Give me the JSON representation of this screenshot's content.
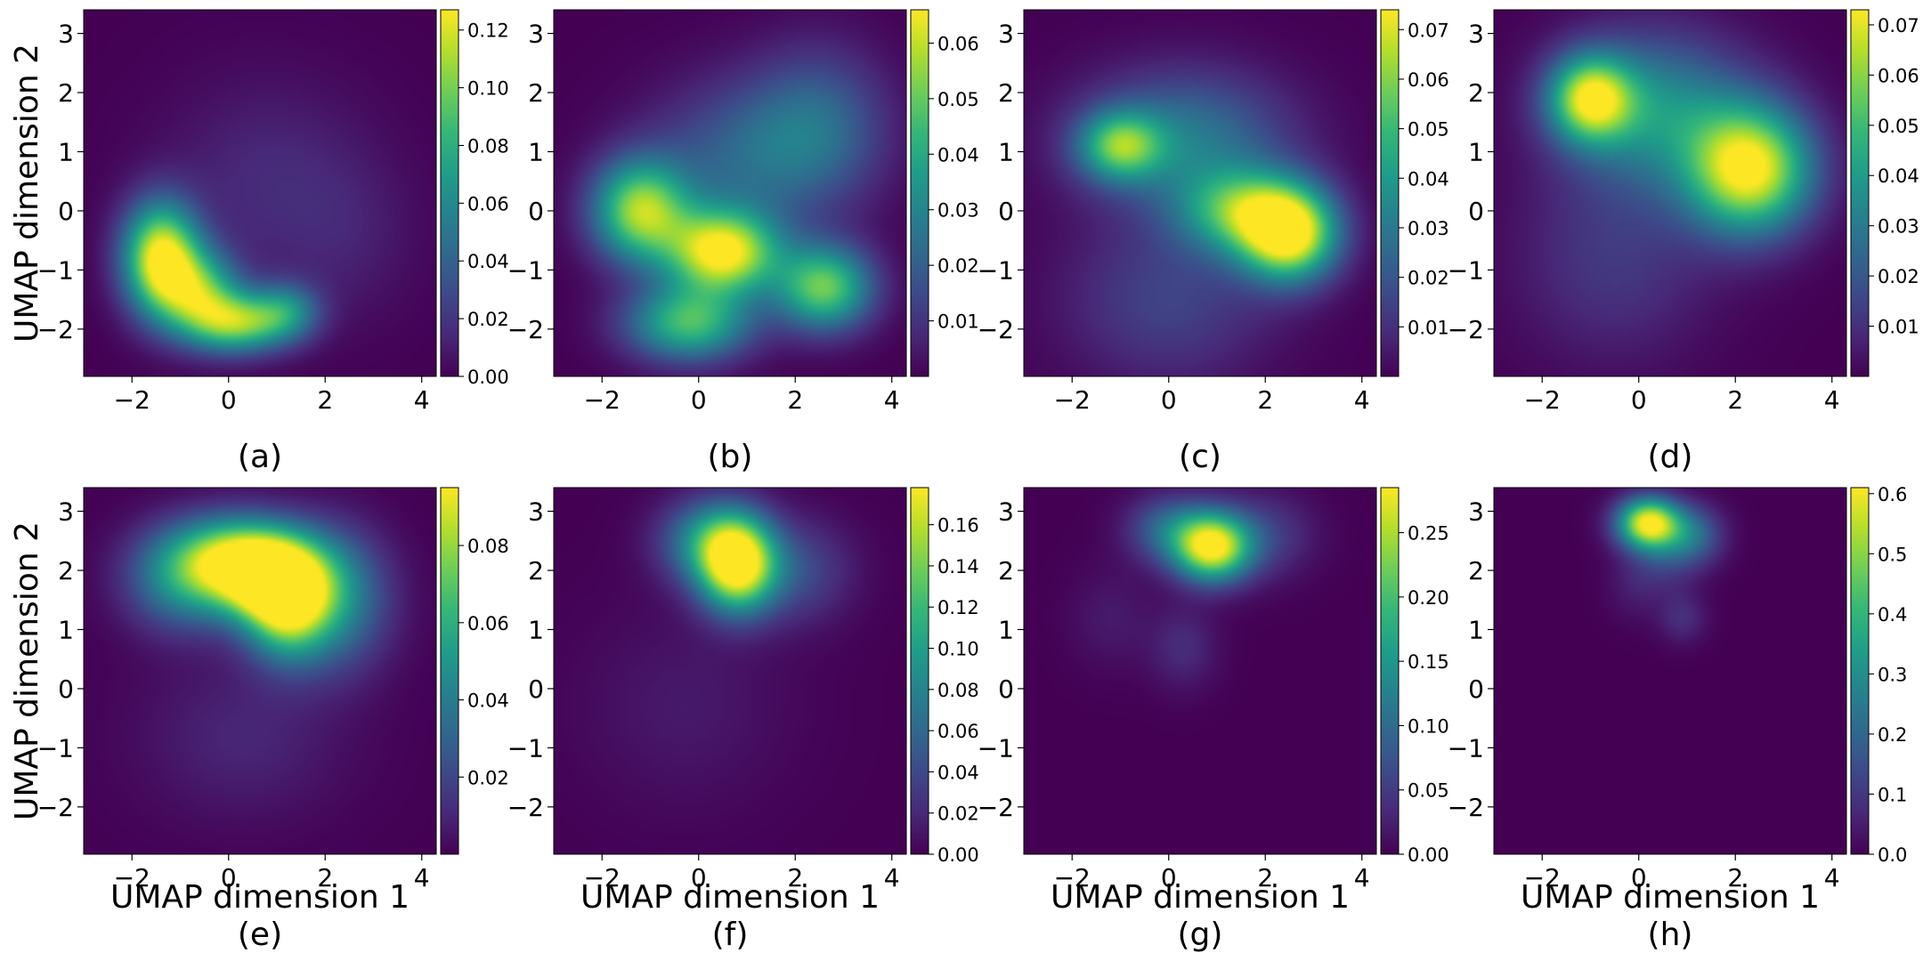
{
  "figure": {
    "colormap": "viridis",
    "colormap_stops": [
      "#440154",
      "#482878",
      "#3e4989",
      "#31688e",
      "#26828e",
      "#1f9e89",
      "#35b779",
      "#6ece58",
      "#b5de2b",
      "#fde725"
    ],
    "xlabel": "UMAP dimension 1",
    "ylabel": "UMAP dimension 2"
  },
  "chart_data": [
    {
      "type": "heatmap",
      "caption": "(a)",
      "xlim": [
        -3,
        4.3
      ],
      "ylim": [
        -2.8,
        3.4
      ],
      "xticks": [
        -2,
        0,
        2,
        4
      ],
      "yticks": [
        -2,
        -1,
        0,
        1,
        2,
        3
      ],
      "colorbar": {
        "min": 0,
        "max": 0.127,
        "ticks": [
          0.0,
          0.02,
          0.04,
          0.06,
          0.08,
          0.1,
          0.12
        ],
        "labels": [
          "0.00",
          "0.02",
          "0.04",
          "0.06",
          "0.08",
          "0.10",
          "0.12"
        ]
      },
      "peaks": [
        {
          "x": -1.4,
          "y": -0.8,
          "v": 0.127,
          "sx": 0.55,
          "sy": 0.65
        },
        {
          "x": -0.6,
          "y": -1.4,
          "v": 0.08,
          "sx": 0.6,
          "sy": 0.5
        },
        {
          "x": 0.2,
          "y": -1.9,
          "v": 0.09,
          "sx": 0.7,
          "sy": 0.35
        },
        {
          "x": 1.2,
          "y": -1.7,
          "v": 0.05,
          "sx": 0.5,
          "sy": 0.35
        },
        {
          "x": 0.8,
          "y": 0.5,
          "v": 0.015,
          "sx": 1.5,
          "sy": 1.2
        },
        {
          "x": 2.5,
          "y": -0.5,
          "v": 0.008,
          "sx": 1.0,
          "sy": 1.0
        }
      ]
    },
    {
      "type": "heatmap",
      "caption": "(b)",
      "xlim": [
        -3,
        4.3
      ],
      "ylim": [
        -2.8,
        3.4
      ],
      "xticks": [
        -2,
        0,
        2,
        4
      ],
      "yticks": [
        -2,
        -1,
        0,
        1,
        2,
        3
      ],
      "colorbar": {
        "min": 0,
        "max": 0.066,
        "ticks": [
          0.01,
          0.02,
          0.03,
          0.04,
          0.05,
          0.06
        ],
        "labels": [
          "0.01",
          "0.02",
          "0.03",
          "0.04",
          "0.05",
          "0.06"
        ]
      },
      "peaks": [
        {
          "x": -1.2,
          "y": 0.0,
          "v": 0.055,
          "sx": 0.7,
          "sy": 0.6
        },
        {
          "x": 0.5,
          "y": -0.7,
          "v": 0.066,
          "sx": 0.8,
          "sy": 0.5
        },
        {
          "x": -0.2,
          "y": -1.9,
          "v": 0.045,
          "sx": 0.9,
          "sy": 0.45
        },
        {
          "x": 2.6,
          "y": -1.3,
          "v": 0.05,
          "sx": 0.7,
          "sy": 0.5
        },
        {
          "x": 1.0,
          "y": 0.9,
          "v": 0.02,
          "sx": 1.4,
          "sy": 0.9
        },
        {
          "x": 2.5,
          "y": 1.5,
          "v": 0.018,
          "sx": 1.0,
          "sy": 0.9
        }
      ]
    },
    {
      "type": "heatmap",
      "caption": "(c)",
      "xlim": [
        -3,
        4.3
      ],
      "ylim": [
        -2.8,
        3.4
      ],
      "xticks": [
        -2,
        0,
        2,
        4
      ],
      "yticks": [
        -2,
        -1,
        0,
        1,
        2,
        3
      ],
      "colorbar": {
        "min": 0,
        "max": 0.074,
        "ticks": [
          0.01,
          0.02,
          0.03,
          0.04,
          0.05,
          0.06,
          0.07
        ],
        "labels": [
          "0.01",
          "0.02",
          "0.03",
          "0.04",
          "0.05",
          "0.06",
          "0.07"
        ]
      },
      "peaks": [
        {
          "x": 2.5,
          "y": -0.4,
          "v": 0.074,
          "sx": 0.7,
          "sy": 0.55
        },
        {
          "x": 1.5,
          "y": 0.0,
          "v": 0.045,
          "sx": 0.9,
          "sy": 0.5
        },
        {
          "x": -1.0,
          "y": 1.1,
          "v": 0.045,
          "sx": 0.6,
          "sy": 0.4
        },
        {
          "x": 0.3,
          "y": 1.2,
          "v": 0.03,
          "sx": 1.5,
          "sy": 0.8
        },
        {
          "x": 0.0,
          "y": -1.5,
          "v": 0.015,
          "sx": 1.5,
          "sy": 1.0
        }
      ]
    },
    {
      "type": "heatmap",
      "caption": "(d)",
      "xlim": [
        -3,
        4.3
      ],
      "ylim": [
        -2.8,
        3.4
      ],
      "xticks": [
        -2,
        0,
        2,
        4
      ],
      "yticks": [
        -2,
        -1,
        0,
        1,
        2,
        3
      ],
      "colorbar": {
        "min": 0,
        "max": 0.073,
        "ticks": [
          0.01,
          0.02,
          0.03,
          0.04,
          0.05,
          0.06,
          0.07
        ],
        "labels": [
          "0.01",
          "0.02",
          "0.03",
          "0.04",
          "0.05",
          "0.06",
          "0.07"
        ]
      },
      "peaks": [
        {
          "x": 2.3,
          "y": 0.7,
          "v": 0.073,
          "sx": 0.9,
          "sy": 0.75
        },
        {
          "x": -1.0,
          "y": 1.9,
          "v": 0.06,
          "sx": 0.6,
          "sy": 0.5
        },
        {
          "x": 0.3,
          "y": 1.7,
          "v": 0.035,
          "sx": 1.3,
          "sy": 0.9
        },
        {
          "x": -0.5,
          "y": -0.8,
          "v": 0.012,
          "sx": 1.4,
          "sy": 1.2
        }
      ]
    },
    {
      "type": "heatmap",
      "caption": "(e)",
      "xlim": [
        -3,
        4.3
      ],
      "ylim": [
        -2.8,
        3.4
      ],
      "xticks": [
        -2,
        0,
        2,
        4
      ],
      "yticks": [
        -2,
        -1,
        0,
        1,
        2,
        3
      ],
      "colorbar": {
        "min": 0,
        "max": 0.095,
        "ticks": [
          0.02,
          0.04,
          0.06,
          0.08
        ],
        "labels": [
          "0.02",
          "0.04",
          "0.06",
          "0.08"
        ]
      },
      "peaks": [
        {
          "x": 0.2,
          "y": 2.2,
          "v": 0.08,
          "sx": 1.0,
          "sy": 0.5
        },
        {
          "x": 0.9,
          "y": 1.8,
          "v": 0.07,
          "sx": 0.8,
          "sy": 0.5
        },
        {
          "x": 1.2,
          "y": 1.3,
          "v": 0.06,
          "sx": 0.6,
          "sy": 0.6
        },
        {
          "x": 2.2,
          "y": 1.5,
          "v": 0.04,
          "sx": 0.8,
          "sy": 0.8
        },
        {
          "x": -1.0,
          "y": 1.8,
          "v": 0.035,
          "sx": 0.8,
          "sy": 0.6
        },
        {
          "x": 0.3,
          "y": -0.8,
          "v": 0.01,
          "sx": 1.5,
          "sy": 1.0
        }
      ]
    },
    {
      "type": "heatmap",
      "caption": "(f)",
      "xlim": [
        -3,
        4.3
      ],
      "ylim": [
        -2.8,
        3.4
      ],
      "xticks": [
        -2,
        0,
        2,
        4
      ],
      "yticks": [
        -2,
        -1,
        0,
        1,
        2,
        3
      ],
      "colorbar": {
        "min": 0,
        "max": 0.178,
        "ticks": [
          0.0,
          0.02,
          0.04,
          0.06,
          0.08,
          0.1,
          0.12,
          0.14,
          0.16
        ],
        "labels": [
          "0.00",
          "0.02",
          "0.04",
          "0.06",
          "0.08",
          "0.10",
          "0.12",
          "0.14",
          "0.16"
        ]
      },
      "peaks": [
        {
          "x": 0.8,
          "y": 2.1,
          "v": 0.178,
          "sx": 0.55,
          "sy": 0.55
        },
        {
          "x": 0.2,
          "y": 2.5,
          "v": 0.08,
          "sx": 0.7,
          "sy": 0.5
        },
        {
          "x": 2.0,
          "y": 2.0,
          "v": 0.04,
          "sx": 0.8,
          "sy": 0.6
        },
        {
          "x": -0.3,
          "y": -0.3,
          "v": 0.012,
          "sx": 1.5,
          "sy": 1.2
        }
      ]
    },
    {
      "type": "heatmap",
      "caption": "(g)",
      "xlim": [
        -3,
        4.3
      ],
      "ylim": [
        -2.8,
        3.4
      ],
      "xticks": [
        -2,
        0,
        2,
        4
      ],
      "yticks": [
        -2,
        -1,
        0,
        1,
        2,
        3
      ],
      "colorbar": {
        "min": 0,
        "max": 0.285,
        "ticks": [
          0.0,
          0.05,
          0.1,
          0.15,
          0.2,
          0.25
        ],
        "labels": [
          "0.00",
          "0.05",
          "0.10",
          "0.15",
          "0.20",
          "0.25"
        ]
      },
      "peaks": [
        {
          "x": 0.9,
          "y": 2.4,
          "v": 0.285,
          "sx": 0.55,
          "sy": 0.4
        },
        {
          "x": 0.0,
          "y": 2.7,
          "v": 0.09,
          "sx": 0.6,
          "sy": 0.4
        },
        {
          "x": 2.0,
          "y": 2.6,
          "v": 0.05,
          "sx": 0.7,
          "sy": 0.5
        },
        {
          "x": 0.3,
          "y": 0.7,
          "v": 0.035,
          "sx": 0.5,
          "sy": 0.5
        },
        {
          "x": -1.2,
          "y": 1.2,
          "v": 0.02,
          "sx": 0.6,
          "sy": 0.6
        }
      ]
    },
    {
      "type": "heatmap",
      "caption": "(h)",
      "xlim": [
        -3,
        4.3
      ],
      "ylim": [
        -2.8,
        3.4
      ],
      "xticks": [
        -2,
        0,
        2,
        4
      ],
      "yticks": [
        -2,
        -1,
        0,
        1,
        2,
        3
      ],
      "colorbar": {
        "min": 0,
        "max": 0.61,
        "ticks": [
          0.0,
          0.1,
          0.2,
          0.3,
          0.4,
          0.5,
          0.6
        ],
        "labels": [
          "0.0",
          "0.1",
          "0.2",
          "0.3",
          "0.4",
          "0.5",
          "0.6"
        ]
      },
      "peaks": [
        {
          "x": 0.2,
          "y": 2.8,
          "v": 0.61,
          "sx": 0.45,
          "sy": 0.3
        },
        {
          "x": 1.1,
          "y": 2.6,
          "v": 0.2,
          "sx": 0.45,
          "sy": 0.35
        },
        {
          "x": 0.5,
          "y": 2.2,
          "v": 0.1,
          "sx": 0.5,
          "sy": 0.4
        },
        {
          "x": 0.9,
          "y": 1.2,
          "v": 0.08,
          "sx": 0.35,
          "sy": 0.3
        },
        {
          "x": -0.1,
          "y": 1.7,
          "v": 0.04,
          "sx": 0.4,
          "sy": 0.4
        }
      ]
    }
  ]
}
